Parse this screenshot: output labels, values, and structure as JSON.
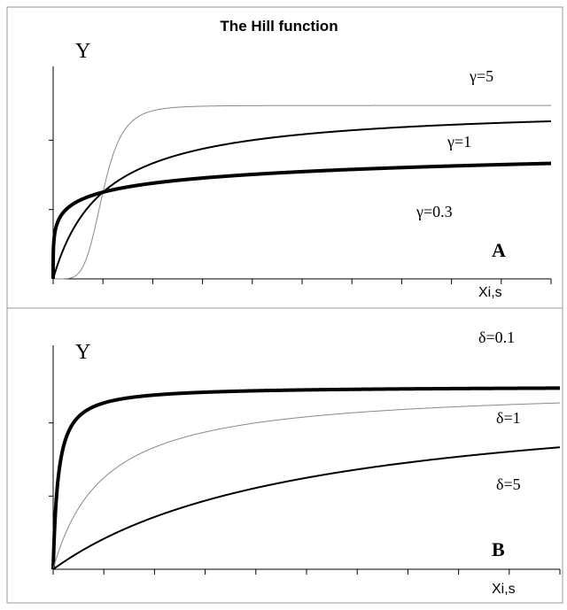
{
  "figure": {
    "title": "The Hill function"
  },
  "chart_data": [
    {
      "type": "line",
      "panel_label": "A",
      "ylabel": "Y",
      "xlabel": "Xi,s",
      "xlim": [
        0,
        10
      ],
      "ylim": [
        0,
        1.2
      ],
      "series": [
        {
          "name": "γ=5",
          "color": "#888888",
          "params": {
            "gamma": 5,
            "k": 1
          }
        },
        {
          "name": "γ=1",
          "color": "#000000",
          "params": {
            "gamma": 1,
            "k": 1
          }
        },
        {
          "name": "γ=0.3",
          "color": "#000000",
          "params": {
            "gamma": 0.3,
            "k": 1
          }
        }
      ]
    },
    {
      "type": "line",
      "panel_label": "B",
      "ylabel": "Y",
      "xlabel": "Xi,s",
      "xlim": [
        0,
        10
      ],
      "ylim": [
        0,
        1.2
      ],
      "series": [
        {
          "name": "δ=0.1",
          "color": "#000000",
          "params": {
            "delta": 0.1,
            "n": 1
          }
        },
        {
          "name": "δ=1",
          "color": "#888888",
          "params": {
            "delta": 1,
            "n": 1
          }
        },
        {
          "name": "δ=5",
          "color": "#000000",
          "params": {
            "delta": 5,
            "n": 1
          }
        }
      ]
    }
  ]
}
